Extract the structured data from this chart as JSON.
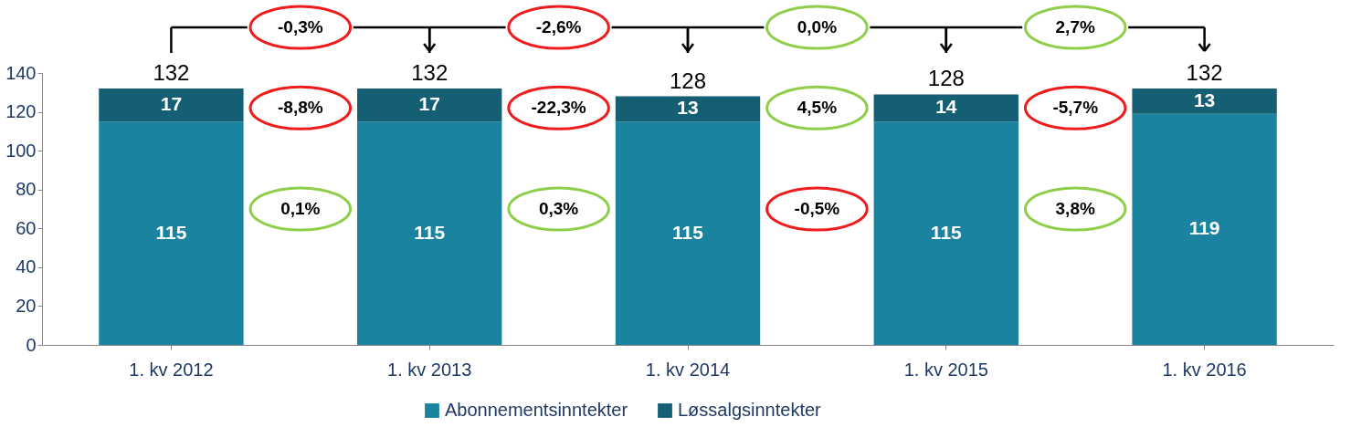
{
  "chart_data": {
    "type": "bar",
    "stacked": true,
    "categories": [
      "1. kv 2012",
      "1. kv 2013",
      "1. kv 2014",
      "1. kv 2015",
      "1. kv 2016"
    ],
    "series": [
      {
        "name": "Abonnementsinntekter",
        "color": "#1a84a0",
        "values": [
          115,
          115,
          115,
          115,
          119
        ]
      },
      {
        "name": "Løssalgsinntekter",
        "color": "#155f75",
        "values": [
          17,
          17,
          13,
          14,
          13
        ]
      }
    ],
    "ylim": [
      0,
      140
    ],
    "yticks": [
      0,
      20,
      40,
      60,
      80,
      100,
      120,
      140
    ],
    "data_labels": true,
    "totals": [
      "132",
      "132",
      "128",
      "128",
      "132"
    ],
    "legend": "bottom",
    "grid": false,
    "annotations": [
      "-0,3%",
      "-2,6%",
      "0,0%",
      "2,7%",
      "-8,8%",
      "-22,3%",
      "4,5%",
      "-5,7%",
      "0,1%",
      "0,3%",
      "-0,5%",
      "3,8%"
    ]
  }
}
